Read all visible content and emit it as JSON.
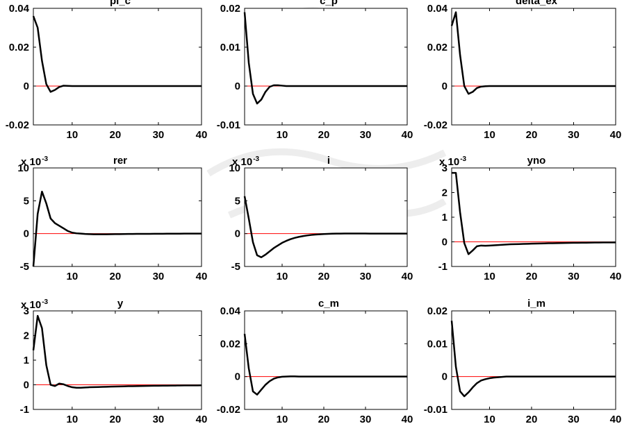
{
  "colors": {
    "irf_line": "#000000",
    "zero_line": "#ff0000",
    "axes": "#000000",
    "watermark": "#e6e6e6"
  },
  "watermark": {
    "icon": "university-seal-watermark"
  },
  "chart_data": [
    {
      "type": "line",
      "title": "pi_c",
      "x": [
        1,
        2,
        3,
        4,
        5,
        6,
        7,
        8,
        9,
        10,
        11,
        12,
        13,
        14,
        15,
        16,
        17,
        18,
        19,
        20,
        21,
        22,
        23,
        24,
        25,
        26,
        27,
        28,
        29,
        30,
        31,
        32,
        33,
        34,
        35,
        36,
        37,
        38,
        39,
        40
      ],
      "y": [
        0.036,
        0.03,
        0.013,
        0.001,
        -0.003,
        -0.002,
        -0.0005,
        0.0002,
        0.0001,
        0,
        0,
        0,
        0,
        0,
        0,
        0,
        0,
        0,
        0,
        0,
        0,
        0,
        0,
        0,
        0,
        0,
        0,
        0,
        0,
        0,
        0,
        0,
        0,
        0,
        0,
        0,
        0,
        0,
        0,
        0
      ],
      "xlim": [
        1,
        40
      ],
      "ylim": [
        -0.02,
        0.04
      ],
      "xticks": [
        "10",
        "20",
        "30",
        "40"
      ],
      "xtick_values": [
        10,
        20,
        30,
        40
      ],
      "yticks": [
        "-0.02",
        "0",
        "0.02",
        "0.04"
      ],
      "ytick_values": [
        -0.02,
        0,
        0.02,
        0.04
      ],
      "exponent": ""
    },
    {
      "type": "line",
      "title": "c_p",
      "x": [
        1,
        2,
        3,
        4,
        5,
        6,
        7,
        8,
        9,
        10,
        11,
        12,
        13,
        14,
        15,
        16,
        17,
        18,
        19,
        20,
        21,
        22,
        23,
        24,
        25,
        26,
        27,
        28,
        29,
        30,
        31,
        32,
        33,
        34,
        35,
        36,
        37,
        38,
        39,
        40
      ],
      "y": [
        0.019,
        0.006,
        -0.002,
        -0.0045,
        -0.0035,
        -0.0015,
        -0.0002,
        0.0002,
        0.0002,
        0.0001,
        0,
        0,
        0,
        0,
        0,
        0,
        0,
        0,
        0,
        0,
        0,
        0,
        0,
        0,
        0,
        0,
        0,
        0,
        0,
        0,
        0,
        0,
        0,
        0,
        0,
        0,
        0,
        0,
        0,
        0
      ],
      "xlim": [
        1,
        40
      ],
      "ylim": [
        -0.01,
        0.02
      ],
      "xticks": [
        "10",
        "20",
        "30",
        "40"
      ],
      "xtick_values": [
        10,
        20,
        30,
        40
      ],
      "yticks": [
        "-0.01",
        "0",
        "0.01",
        "0.02"
      ],
      "ytick_values": [
        -0.01,
        0,
        0.01,
        0.02
      ],
      "exponent": ""
    },
    {
      "type": "line",
      "title": "delta_ex",
      "x": [
        1,
        2,
        3,
        4,
        5,
        6,
        7,
        8,
        9,
        10,
        11,
        12,
        13,
        14,
        15,
        16,
        17,
        18,
        19,
        20,
        21,
        22,
        23,
        24,
        25,
        26,
        27,
        28,
        29,
        30,
        31,
        32,
        33,
        34,
        35,
        36,
        37,
        38,
        39,
        40
      ],
      "y": [
        0.031,
        0.038,
        0.016,
        0.0,
        -0.004,
        -0.003,
        -0.001,
        -0.0003,
        -0.0001,
        0,
        0,
        0,
        0,
        0,
        0,
        0,
        0,
        0,
        0,
        0,
        0,
        0,
        0,
        0,
        0,
        0,
        0,
        0,
        0,
        0,
        0,
        0,
        0,
        0,
        0,
        0,
        0,
        0,
        0,
        0
      ],
      "xlim": [
        1,
        40
      ],
      "ylim": [
        -0.02,
        0.04
      ],
      "xticks": [
        "10",
        "20",
        "30",
        "40"
      ],
      "xtick_values": [
        10,
        20,
        30,
        40
      ],
      "yticks": [
        "-0.02",
        "0",
        "0.02",
        "0.04"
      ],
      "ytick_values": [
        -0.02,
        0,
        0.02,
        0.04
      ],
      "exponent": ""
    },
    {
      "type": "line",
      "title": "rer",
      "x": [
        1,
        2,
        3,
        4,
        5,
        6,
        7,
        8,
        9,
        10,
        11,
        12,
        13,
        14,
        15,
        16,
        17,
        18,
        19,
        20,
        21,
        22,
        23,
        24,
        25,
        26,
        27,
        28,
        29,
        30,
        31,
        32,
        33,
        34,
        35,
        36,
        37,
        38,
        39,
        40
      ],
      "y": [
        -5,
        3,
        6.4,
        4.6,
        2.3,
        1.6,
        1.2,
        0.8,
        0.4,
        0.15,
        0.05,
        0,
        -0.05,
        -0.08,
        -0.1,
        -0.1,
        -0.1,
        -0.1,
        -0.09,
        -0.08,
        -0.07,
        -0.06,
        -0.05,
        -0.05,
        -0.04,
        -0.04,
        -0.03,
        -0.03,
        -0.02,
        -0.02,
        -0.02,
        -0.01,
        -0.01,
        -0.01,
        -0.01,
        0,
        0,
        0,
        0,
        0
      ],
      "xlim": [
        1,
        40
      ],
      "ylim": [
        -5,
        10
      ],
      "xticks": [
        "10",
        "20",
        "30",
        "40"
      ],
      "xtick_values": [
        10,
        20,
        30,
        40
      ],
      "yticks": [
        "-5",
        "0",
        "5",
        "10"
      ],
      "ytick_values": [
        -5,
        0,
        5,
        10
      ],
      "exponent": "x 10",
      "exponent_power": "-3"
    },
    {
      "type": "line",
      "title": "i",
      "x": [
        1,
        2,
        3,
        4,
        5,
        6,
        7,
        8,
        9,
        10,
        11,
        12,
        13,
        14,
        15,
        16,
        17,
        18,
        19,
        20,
        21,
        22,
        23,
        24,
        25,
        26,
        27,
        28,
        29,
        30,
        31,
        32,
        33,
        34,
        35,
        36,
        37,
        38,
        39,
        40
      ],
      "y": [
        5.7,
        2.3,
        -1.3,
        -3.3,
        -3.6,
        -3.2,
        -2.7,
        -2.2,
        -1.8,
        -1.4,
        -1.1,
        -0.85,
        -0.65,
        -0.5,
        -0.38,
        -0.28,
        -0.2,
        -0.14,
        -0.1,
        -0.06,
        -0.03,
        -0.01,
        0,
        0.01,
        0.02,
        0.02,
        0.02,
        0.02,
        0.02,
        0.02,
        0.01,
        0.01,
        0.01,
        0.01,
        0.01,
        0,
        0,
        0,
        0,
        0
      ],
      "xlim": [
        1,
        40
      ],
      "ylim": [
        -5,
        10
      ],
      "xticks": [
        "10",
        "20",
        "30",
        "40"
      ],
      "xtick_values": [
        10,
        20,
        30,
        40
      ],
      "yticks": [
        "-5",
        "0",
        "5",
        "10"
      ],
      "ytick_values": [
        -5,
        0,
        5,
        10
      ],
      "exponent": "x 10",
      "exponent_power": "-3"
    },
    {
      "type": "line",
      "title": "yno",
      "x": [
        1,
        2,
        3,
        4,
        5,
        6,
        7,
        8,
        9,
        10,
        11,
        12,
        13,
        14,
        15,
        16,
        17,
        18,
        19,
        20,
        21,
        22,
        23,
        24,
        25,
        26,
        27,
        28,
        29,
        30,
        31,
        32,
        33,
        34,
        35,
        36,
        37,
        38,
        39,
        40
      ],
      "y": [
        2.8,
        2.8,
        1.2,
        -0.05,
        -0.5,
        -0.35,
        -0.18,
        -0.15,
        -0.16,
        -0.15,
        -0.14,
        -0.13,
        -0.12,
        -0.11,
        -0.1,
        -0.095,
        -0.09,
        -0.085,
        -0.08,
        -0.075,
        -0.07,
        -0.066,
        -0.062,
        -0.058,
        -0.055,
        -0.052,
        -0.049,
        -0.046,
        -0.043,
        -0.04,
        -0.038,
        -0.036,
        -0.034,
        -0.032,
        -0.03,
        -0.028,
        -0.026,
        -0.025,
        -0.024,
        -0.023
      ],
      "xlim": [
        1,
        40
      ],
      "ylim": [
        -1,
        3
      ],
      "xticks": [
        "10",
        "20",
        "30",
        "40"
      ],
      "xtick_values": [
        10,
        20,
        30,
        40
      ],
      "yticks": [
        "-1",
        "0",
        "1",
        "2",
        "3"
      ],
      "ytick_values": [
        -1,
        0,
        1,
        2,
        3
      ],
      "exponent": "x 10",
      "exponent_power": "-3"
    },
    {
      "type": "line",
      "title": "y",
      "x": [
        1,
        2,
        3,
        4,
        5,
        6,
        7,
        8,
        9,
        10,
        11,
        12,
        13,
        14,
        15,
        16,
        17,
        18,
        19,
        20,
        21,
        22,
        23,
        24,
        25,
        26,
        27,
        28,
        29,
        30,
        31,
        32,
        33,
        34,
        35,
        36,
        37,
        38,
        39,
        40
      ],
      "y": [
        1.4,
        2.8,
        2.3,
        0.8,
        0.0,
        -0.05,
        0.05,
        0.02,
        -0.05,
        -0.1,
        -0.12,
        -0.12,
        -0.11,
        -0.1,
        -0.095,
        -0.09,
        -0.085,
        -0.08,
        -0.075,
        -0.07,
        -0.066,
        -0.062,
        -0.058,
        -0.055,
        -0.052,
        -0.049,
        -0.046,
        -0.043,
        -0.04,
        -0.038,
        -0.036,
        -0.034,
        -0.032,
        -0.03,
        -0.028,
        -0.026,
        -0.025,
        -0.024,
        -0.023,
        -0.022
      ],
      "xlim": [
        1,
        40
      ],
      "ylim": [
        -1,
        3
      ],
      "xticks": [
        "10",
        "20",
        "30",
        "40"
      ],
      "xtick_values": [
        10,
        20,
        30,
        40
      ],
      "yticks": [
        "-1",
        "0",
        "1",
        "2",
        "3"
      ],
      "ytick_values": [
        -1,
        0,
        1,
        2,
        3
      ],
      "exponent": "x 10",
      "exponent_power": "-3"
    },
    {
      "type": "line",
      "title": "c_m",
      "x": [
        1,
        2,
        3,
        4,
        5,
        6,
        7,
        8,
        9,
        10,
        11,
        12,
        13,
        14,
        15,
        16,
        17,
        18,
        19,
        20,
        21,
        22,
        23,
        24,
        25,
        26,
        27,
        28,
        29,
        30,
        31,
        32,
        33,
        34,
        35,
        36,
        37,
        38,
        39,
        40
      ],
      "y": [
        0.026,
        0.005,
        -0.009,
        -0.011,
        -0.008,
        -0.005,
        -0.0028,
        -0.0013,
        -0.0005,
        -0.0001,
        0,
        0.0001,
        0.0001,
        0,
        0,
        0,
        0,
        0,
        0,
        0,
        0,
        0,
        0,
        0,
        0,
        0,
        0,
        0,
        0,
        0,
        0,
        0,
        0,
        0,
        0,
        0,
        0,
        0,
        0,
        0
      ],
      "xlim": [
        1,
        40
      ],
      "ylim": [
        -0.02,
        0.04
      ],
      "xticks": [
        "10",
        "20",
        "30",
        "40"
      ],
      "xtick_values": [
        10,
        20,
        30,
        40
      ],
      "yticks": [
        "-0.02",
        "0",
        "0.02",
        "0.04"
      ],
      "ytick_values": [
        -0.02,
        0,
        0.02,
        0.04
      ],
      "exponent": ""
    },
    {
      "type": "line",
      "title": "i_m",
      "x": [
        1,
        2,
        3,
        4,
        5,
        6,
        7,
        8,
        9,
        10,
        11,
        12,
        13,
        14,
        15,
        16,
        17,
        18,
        19,
        20,
        21,
        22,
        23,
        24,
        25,
        26,
        27,
        28,
        29,
        30,
        31,
        32,
        33,
        34,
        35,
        36,
        37,
        38,
        39,
        40
      ],
      "y": [
        0.017,
        0.003,
        -0.0045,
        -0.006,
        -0.0048,
        -0.0033,
        -0.002,
        -0.0012,
        -0.0008,
        -0.0005,
        -0.0003,
        -0.0002,
        -0.0001,
        0,
        0,
        0,
        0,
        0,
        0,
        0,
        0,
        0,
        0,
        0,
        0,
        0,
        0,
        0,
        0,
        0,
        0,
        0,
        0,
        0,
        0,
        0,
        0,
        0,
        0,
        0
      ],
      "xlim": [
        1,
        40
      ],
      "ylim": [
        -0.01,
        0.02
      ],
      "xticks": [
        "10",
        "20",
        "30",
        "40"
      ],
      "xtick_values": [
        10,
        20,
        30,
        40
      ],
      "yticks": [
        "-0.01",
        "0",
        "0.01",
        "0.02"
      ],
      "ytick_values": [
        -0.01,
        0,
        0.01,
        0.02
      ],
      "exponent": ""
    }
  ]
}
